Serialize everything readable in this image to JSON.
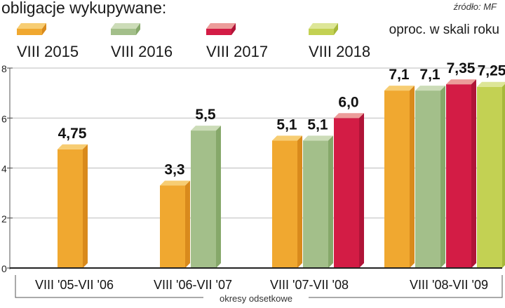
{
  "legend": {
    "title": "obligacje wykupywane:",
    "items": [
      {
        "label": "VIII 2015",
        "color": "#f0a830",
        "top": "#f7cd73",
        "side": "#d98a1c"
      },
      {
        "label": "VIII 2016",
        "color": "#a3bf8a",
        "top": "#ccdcb8",
        "side": "#86a86a"
      },
      {
        "label": "VIII 2017",
        "color": "#d31c45",
        "top": "#ec9c9a",
        "side": "#b01438"
      },
      {
        "label": "VIII 2018",
        "color": "#c3d153",
        "top": "#dde697",
        "side": "#a7b83a"
      }
    ]
  },
  "source": "źródło: MF",
  "unit": "oproc. w skali roku",
  "chart_data": {
    "type": "bar",
    "title": "obligacje wykupywane:",
    "xlabel": "okresy odsetkowe",
    "ylabel": "oproc. w skali roku",
    "ylim": [
      0,
      8
    ],
    "yticks": [
      "0",
      "2",
      "4",
      "6",
      "8"
    ],
    "categories": [
      "VIII '05-VII '06",
      "VIII '06-VII '07",
      "VIII '07-VII '08",
      "VIII '08-VII '09"
    ],
    "series": [
      {
        "name": "VIII 2015",
        "values": [
          4.75,
          3.3,
          5.1,
          7.1
        ],
        "labels": [
          "4,75",
          "3,3",
          "5,1",
          "7,1"
        ]
      },
      {
        "name": "VIII 2016",
        "values": [
          null,
          5.5,
          5.1,
          7.1
        ],
        "labels": [
          null,
          "5,5",
          "5,1",
          "7,1"
        ]
      },
      {
        "name": "VIII 2017",
        "values": [
          null,
          null,
          6.0,
          7.35
        ],
        "labels": [
          null,
          null,
          "6,0",
          "7,35"
        ]
      },
      {
        "name": "VIII 2018",
        "values": [
          null,
          null,
          null,
          7.25
        ],
        "labels": [
          null,
          null,
          null,
          "7,25"
        ]
      }
    ]
  }
}
